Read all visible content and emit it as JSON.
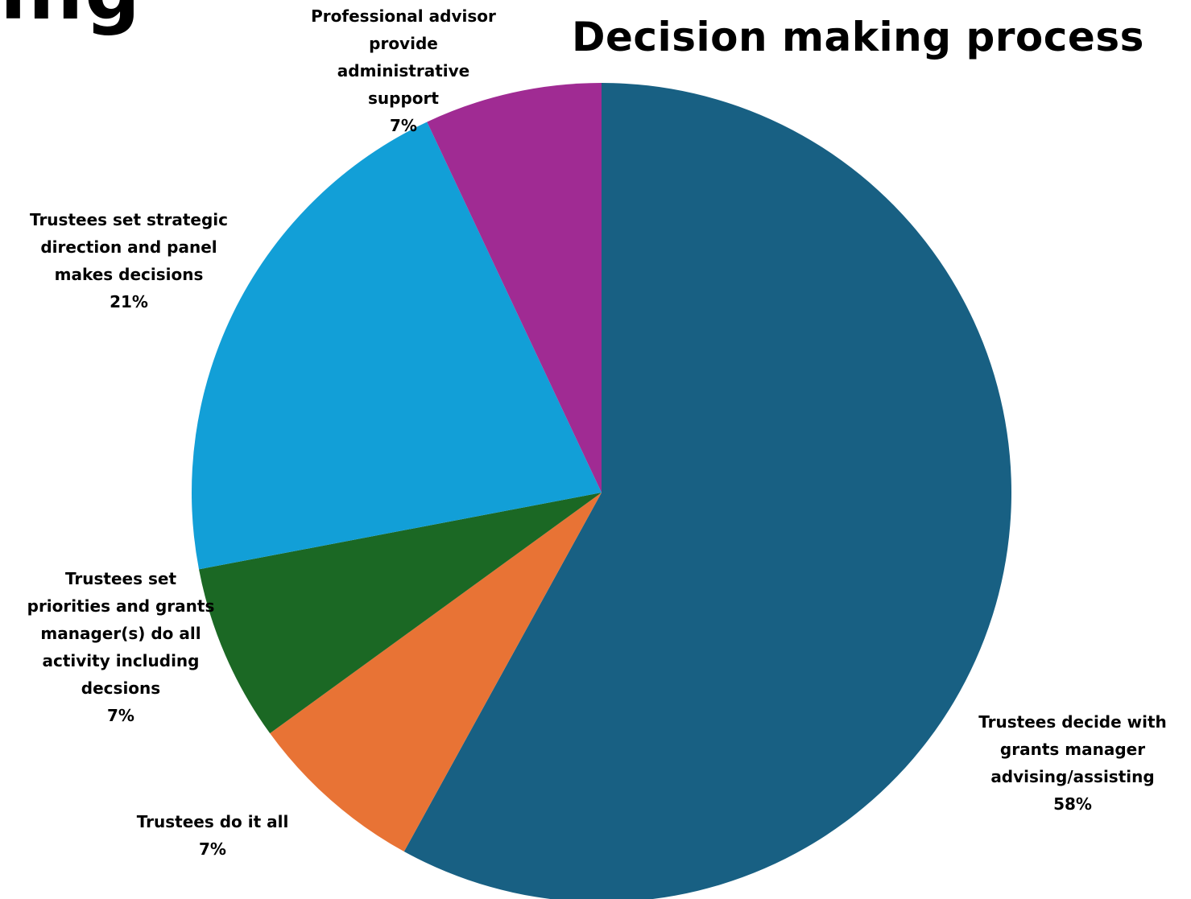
{
  "page": {
    "partial_heading": "ing"
  },
  "chart_data": {
    "type": "pie",
    "title": "Decision making process",
    "start_angle_deg": 0,
    "direction": "clockwise",
    "slices": [
      {
        "name": "Trustees decide with grants manager advising/assisting",
        "value": 58,
        "label_lines": [
          "Trustees decide with",
          "grants manager",
          "advising/assisting",
          "58%"
        ],
        "color": "#186083"
      },
      {
        "name": "Trustees do it all",
        "value": 7,
        "label_lines": [
          "Trustees do it all",
          "7%"
        ],
        "color": "#E87335"
      },
      {
        "name": "Trustees set priorities and grants manager(s) do all activity including decsions",
        "value": 7,
        "label_lines": [
          "Trustees set",
          "priorities and grants",
          "manager(s) do all",
          "activity including",
          "decsions",
          "7%"
        ],
        "color": "#1B6824"
      },
      {
        "name": "Trustees set strategic direction and panel makes decisions",
        "value": 21,
        "label_lines": [
          "Trustees set strategic",
          "direction and panel",
          "makes decisions",
          "21%"
        ],
        "color": "#129FD7"
      },
      {
        "name": "Professional advisor provide administrative support",
        "value": 7,
        "label_lines": [
          "Professional advisor",
          "provide",
          "administrative",
          "support",
          "7%"
        ],
        "color": "#A02B93"
      }
    ]
  }
}
